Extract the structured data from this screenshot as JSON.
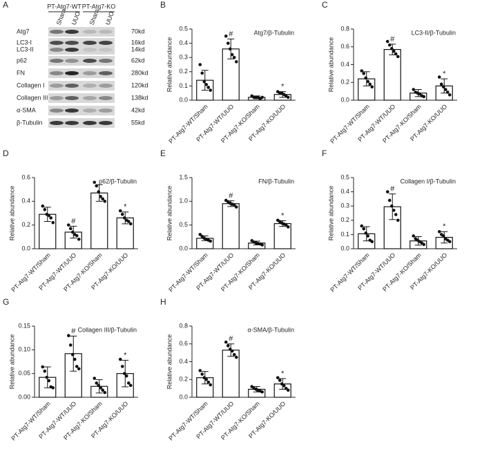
{
  "blot": {
    "panel": "A",
    "groups": [
      "PT-Atg7-WT",
      "PT-Atg7-KO"
    ],
    "lanes": [
      "Sham",
      "UUO",
      "Sham",
      "UUO"
    ],
    "rows": [
      {
        "protein": "Atg7",
        "size": "70kd"
      },
      {
        "protein": "LC3-I",
        "size": "16kd"
      },
      {
        "protein": "LC3-II",
        "size": "14kd"
      },
      {
        "protein": "p62",
        "size": "62kd"
      },
      {
        "protein": "FN",
        "size": "280kd"
      },
      {
        "protein": "Collagen I",
        "size": "120kd"
      },
      {
        "protein": "Collagen III",
        "size": "138kd"
      },
      {
        "protein": "α-SMA",
        "size": "42kd"
      },
      {
        "protein": "β-Tubulin",
        "size": "55kd"
      }
    ]
  },
  "chart_data": [
    {
      "type": "bar",
      "panel": "B",
      "title": "Atg7/β-Tubulin",
      "y_label": "Relative abundance",
      "categories": [
        "PT-Atg7-WT/Sham",
        "PT-Atg7-WT/UUO",
        "PT-Atg7-KO/Sham",
        "PT-Atg7-KO/UUO"
      ],
      "values": [
        0.14,
        0.36,
        0.02,
        0.04
      ],
      "errors": [
        0.07,
        0.07,
        0.01,
        0.02
      ],
      "points": [
        [
          0.25,
          0.19,
          0.13,
          0.11,
          0.09,
          0.07
        ],
        [
          0.45,
          0.4,
          0.36,
          0.32,
          0.3,
          0.27
        ],
        [
          0.03,
          0.02,
          0.02,
          0.02,
          0.01,
          0.02
        ],
        [
          0.06,
          0.05,
          0.05,
          0.04,
          0.03,
          0.02
        ]
      ],
      "annotations": [
        null,
        "#",
        null,
        "*"
      ],
      "color": "#ffffff",
      "ylim": [
        0,
        0.5
      ],
      "yticks": [
        {
          "value": 0,
          "label": "0.0"
        },
        0.1,
        0.2,
        0.3,
        0.4,
        0.5
      ]
    },
    {
      "type": "bar",
      "panel": "C",
      "title": "LC3-II/β-Tubulin",
      "y_label": "Relative abundance",
      "categories": [
        "PT-Atg7-WT/Sham",
        "PT-Atg7-WT/UUO",
        "PT-Atg7-KO/Sham",
        "PT-Atg7-KO/UUO"
      ],
      "values": [
        0.24,
        0.57,
        0.08,
        0.16
      ],
      "errors": [
        0.08,
        0.06,
        0.04,
        0.08
      ],
      "points": [
        [
          0.33,
          0.3,
          0.25,
          0.21,
          0.18,
          0.15
        ],
        [
          0.66,
          0.62,
          0.58,
          0.55,
          0.52,
          0.49
        ],
        [
          0.12,
          0.09,
          0.08,
          0.07,
          0.05,
          0.04
        ],
        [
          0.26,
          0.18,
          0.15,
          0.12,
          0.09,
          0.06
        ]
      ],
      "annotations": [
        null,
        "#",
        null,
        "*"
      ],
      "color": "#ffffff",
      "ylim": [
        0,
        0.8
      ],
      "yticks": [
        {
          "value": 0,
          "label": "0.0"
        },
        0.2,
        0.4,
        0.6,
        0.8
      ]
    },
    {
      "type": "bar",
      "panel": "D",
      "title": "p62/β-Tubulin",
      "y_label": "Relative abundance",
      "categories": [
        "PT-Atg7-WT/Sham",
        "PT-Atg7-WT/UUO",
        "PT-Atg7-KO/Sham",
        "PT-Atg7-KO/UUO"
      ],
      "values": [
        0.29,
        0.14,
        0.47,
        0.26
      ],
      "errors": [
        0.06,
        0.05,
        0.07,
        0.05
      ],
      "points": [
        [
          0.36,
          0.33,
          0.29,
          0.28,
          0.26,
          0.22
        ],
        [
          0.2,
          0.17,
          0.14,
          0.12,
          0.11,
          0.08
        ],
        [
          0.56,
          0.53,
          0.48,
          0.44,
          0.42,
          0.4
        ],
        [
          0.32,
          0.29,
          0.26,
          0.24,
          0.23,
          0.21
        ]
      ],
      "annotations": [
        null,
        "#",
        null,
        "*"
      ],
      "color": "#ffffff",
      "ylim": [
        0,
        0.6
      ],
      "yticks": [
        {
          "value": 0,
          "label": "0.0"
        },
        0.2,
        0.4,
        0.6
      ]
    },
    {
      "type": "bar",
      "panel": "E",
      "title": "FN/β-Tubulin",
      "y_label": "Relative abundance",
      "categories": [
        "PT-Atg7-WT/Sham",
        "PT-Atg7-WT/UUO",
        "PT-Atg7-KO/Sham",
        "PT-Atg7-KO/UUO"
      ],
      "values": [
        0.22,
        0.95,
        0.12,
        0.53
      ],
      "errors": [
        0.05,
        0.06,
        0.04,
        0.06
      ],
      "points": [
        [
          0.3,
          0.26,
          0.22,
          0.2,
          0.18,
          0.16
        ],
        [
          1.02,
          0.99,
          0.96,
          0.94,
          0.92,
          0.88
        ],
        [
          0.17,
          0.14,
          0.12,
          0.11,
          0.1,
          0.08
        ],
        [
          0.6,
          0.57,
          0.54,
          0.52,
          0.5,
          0.46
        ]
      ],
      "annotations": [
        null,
        "#",
        null,
        "*"
      ],
      "color": "#ffffff",
      "ylim": [
        0,
        1.5
      ],
      "yticks": [
        {
          "value": 0,
          "label": "0.0"
        },
        0.5,
        {
          "value": 1,
          "label": "1.0"
        },
        1.5
      ]
    },
    {
      "type": "bar",
      "panel": "F",
      "title": "Collagen I/β-Tubulin",
      "y_label": "Relative abundance",
      "categories": [
        "PT-Atg7-WT/Sham",
        "PT-Atg7-WT/UUO",
        "PT-Atg7-KO/Sham",
        "PT-Atg7-KO/UUO"
      ],
      "values": [
        0.105,
        0.295,
        0.055,
        0.08
      ],
      "errors": [
        0.05,
        0.09,
        0.03,
        0.04
      ],
      "points": [
        [
          0.16,
          0.14,
          0.11,
          0.09,
          0.06,
          0.05
        ],
        [
          0.4,
          0.34,
          0.3,
          0.27,
          0.24,
          0.2
        ],
        [
          0.09,
          0.07,
          0.06,
          0.05,
          0.04,
          0.03
        ],
        [
          0.12,
          0.1,
          0.09,
          0.07,
          0.06,
          0.05
        ]
      ],
      "annotations": [
        null,
        "#",
        null,
        "*"
      ],
      "color": "#ffffff",
      "ylim": [
        0,
        0.5
      ],
      "yticks": [
        {
          "value": 0,
          "label": "0.0"
        },
        0.1,
        0.2,
        0.3,
        0.4,
        0.5
      ]
    },
    {
      "type": "bar",
      "panel": "G",
      "title": "Collagen III/β-Tubulin",
      "y_label": "Relative abundance",
      "categories": [
        "PT-Atg7-WT/Sham",
        "PT-Atg7-WT/UUO",
        "PT-Atg7-KO/Sham",
        "PT-Atg7-KO/UUO"
      ],
      "values": [
        0.042,
        0.092,
        0.023,
        0.05
      ],
      "errors": [
        0.022,
        0.037,
        0.014,
        0.028
      ],
      "points": [
        [
          0.064,
          0.055,
          0.042,
          0.035,
          0.022,
          0.02
        ],
        [
          0.13,
          0.11,
          0.09,
          0.08,
          0.065,
          0.06
        ],
        [
          0.04,
          0.03,
          0.025,
          0.02,
          0.015,
          0.01
        ],
        [
          0.08,
          0.065,
          0.05,
          0.045,
          0.03,
          0.025
        ]
      ],
      "annotations": [
        null,
        "#",
        null,
        "*"
      ],
      "color": "#ffffff",
      "ylim": [
        0,
        0.15
      ],
      "yticks": [
        {
          "value": 0,
          "label": "0.00"
        },
        0.05,
        {
          "value": 0.1,
          "label": "0.10"
        },
        0.15
      ]
    },
    {
      "type": "bar",
      "panel": "H",
      "title": "α-SMA/β-Tubulin",
      "y_label": "Relative abundance",
      "categories": [
        "PT-Atg7-WT/Sham",
        "PT-Atg7-WT/UUO",
        "PT-Atg7-KO/Sham",
        "PT-Atg7-KO/UUO"
      ],
      "values": [
        0.22,
        0.53,
        0.09,
        0.15
      ],
      "errors": [
        0.07,
        0.07,
        0.03,
        0.06
      ],
      "points": [
        [
          0.3,
          0.26,
          0.22,
          0.2,
          0.17,
          0.14
        ],
        [
          0.62,
          0.58,
          0.54,
          0.52,
          0.48,
          0.45
        ],
        [
          0.12,
          0.1,
          0.09,
          0.08,
          0.07,
          0.06
        ],
        [
          0.22,
          0.19,
          0.15,
          0.13,
          0.1,
          0.08
        ]
      ],
      "annotations": [
        null,
        "#",
        null,
        "*"
      ],
      "color": "#ffffff",
      "ylim": [
        0,
        0.8
      ],
      "yticks": [
        {
          "value": 0,
          "label": "0.0"
        },
        0.2,
        0.4,
        0.6,
        0.8
      ]
    }
  ]
}
